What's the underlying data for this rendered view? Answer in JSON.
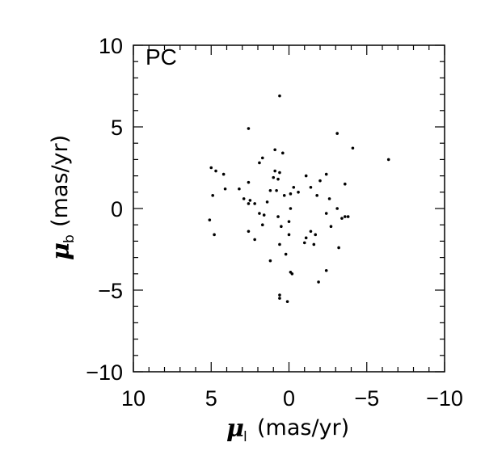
{
  "chart_data": {
    "type": "scatter",
    "title": "",
    "annotation": "PC",
    "xlabel": {
      "symbol": "μ",
      "subscript": "l",
      "unit": "(mas/yr)"
    },
    "ylabel": {
      "symbol": "μ",
      "subscript": "b",
      "unit": "(mas/yr)"
    },
    "xlim": [
      10,
      -10
    ],
    "ylim": [
      -10,
      10
    ],
    "x_reversed": true,
    "x_ticks": [
      10,
      5,
      0,
      -5,
      -10
    ],
    "x_tick_labels": [
      "10",
      "5",
      "0",
      "−5",
      "−10"
    ],
    "y_ticks": [
      -10,
      -5,
      0,
      5,
      10
    ],
    "y_tick_labels": [
      "−10",
      "−5",
      "0",
      "5",
      "10"
    ],
    "x_minor_step": 1,
    "y_minor_step": 1,
    "grid": false,
    "legend": "none",
    "series": [
      {
        "marker_color": "#000000",
        "points": [
          [
            0.6,
            6.9
          ],
          [
            2.6,
            4.9
          ],
          [
            -3.1,
            4.6
          ],
          [
            -4.1,
            3.7
          ],
          [
            -6.4,
            3.0
          ],
          [
            0.9,
            3.6
          ],
          [
            0.4,
            3.4
          ],
          [
            1.7,
            3.1
          ],
          [
            1.9,
            2.8
          ],
          [
            5.0,
            2.5
          ],
          [
            4.7,
            2.3
          ],
          [
            4.2,
            2.1
          ],
          [
            0.9,
            2.3
          ],
          [
            0.6,
            2.2
          ],
          [
            1.0,
            1.9
          ],
          [
            0.7,
            1.8
          ],
          [
            -1.1,
            2.0
          ],
          [
            -2.4,
            2.1
          ],
          [
            -0.3,
            1.3
          ],
          [
            -1.4,
            1.3
          ],
          [
            -3.6,
            1.5
          ],
          [
            -2.0,
            1.7
          ],
          [
            2.6,
            1.6
          ],
          [
            3.2,
            1.2
          ],
          [
            4.1,
            1.2
          ],
          [
            1.2,
            1.1
          ],
          [
            0.8,
            1.1
          ],
          [
            -0.6,
            1.0
          ],
          [
            -0.1,
            0.9
          ],
          [
            4.9,
            0.8
          ],
          [
            0.3,
            0.8
          ],
          [
            2.9,
            0.6
          ],
          [
            2.5,
            0.5
          ],
          [
            1.4,
            0.4
          ],
          [
            -1.8,
            0.8
          ],
          [
            -2.6,
            0.6
          ],
          [
            2.6,
            0.3
          ],
          [
            2.2,
            0.3
          ],
          [
            -3.1,
            0.0
          ],
          [
            -0.1,
            0.0
          ],
          [
            -2.4,
            -0.3
          ],
          [
            1.9,
            -0.3
          ],
          [
            1.6,
            -0.4
          ],
          [
            -3.4,
            -0.6
          ],
          [
            -3.6,
            -0.5
          ],
          [
            -3.8,
            -0.5
          ],
          [
            0.7,
            -0.5
          ],
          [
            5.1,
            -0.7
          ],
          [
            0.0,
            -0.8
          ],
          [
            1.7,
            -1.0
          ],
          [
            0.5,
            -1.1
          ],
          [
            -2.7,
            -1.1
          ],
          [
            2.6,
            -1.4
          ],
          [
            -1.4,
            -1.4
          ],
          [
            -1.7,
            -1.6
          ],
          [
            0.0,
            -1.6
          ],
          [
            4.8,
            -1.6
          ],
          [
            2.2,
            -1.9
          ],
          [
            -1.1,
            -1.8
          ],
          [
            -1.0,
            -2.1
          ],
          [
            -1.6,
            -2.2
          ],
          [
            0.6,
            -2.2
          ],
          [
            -3.2,
            -2.4
          ],
          [
            0.2,
            -2.8
          ],
          [
            1.2,
            -3.2
          ],
          [
            -2.4,
            -3.8
          ],
          [
            -0.1,
            -3.9
          ],
          [
            -0.2,
            -4.0
          ],
          [
            -1.9,
            -4.5
          ],
          [
            0.6,
            -5.3
          ],
          [
            0.6,
            -5.5
          ],
          [
            0.1,
            -5.7
          ]
        ]
      }
    ]
  }
}
